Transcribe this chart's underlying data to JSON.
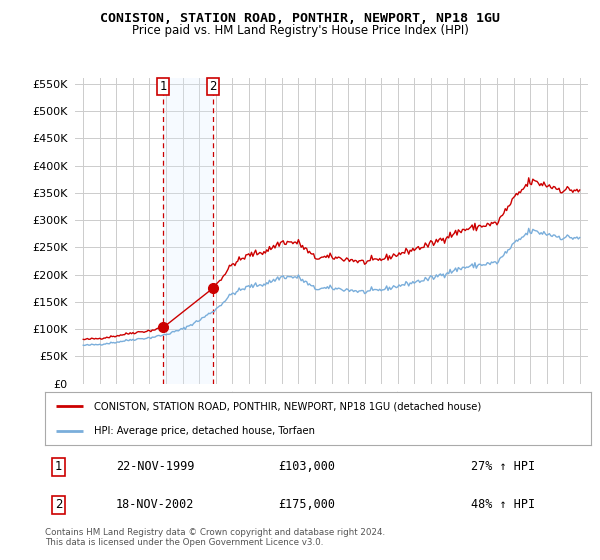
{
  "title": "CONISTON, STATION ROAD, PONTHIR, NEWPORT, NP18 1GU",
  "subtitle": "Price paid vs. HM Land Registry's House Price Index (HPI)",
  "legend_line1": "CONISTON, STATION ROAD, PONTHIR, NEWPORT, NP18 1GU (detached house)",
  "legend_line2": "HPI: Average price, detached house, Torfaen",
  "purchase1_date": "22-NOV-1999",
  "purchase1_price": "£103,000",
  "purchase1_hpi": "27% ↑ HPI",
  "purchase2_date": "18-NOV-2002",
  "purchase2_price": "£175,000",
  "purchase2_hpi": "48% ↑ HPI",
  "footer": "Contains HM Land Registry data © Crown copyright and database right 2024.\nThis data is licensed under the Open Government Licence v3.0.",
  "hpi_color": "#7aaedb",
  "price_paid_color": "#cc0000",
  "purchase1_x": 1999.88,
  "purchase1_y": 103000,
  "purchase2_x": 2002.88,
  "purchase2_y": 175000,
  "ylim_min": 0,
  "ylim_max": 560000,
  "yticks": [
    0,
    50000,
    100000,
    150000,
    200000,
    250000,
    300000,
    350000,
    400000,
    450000,
    500000,
    550000
  ],
  "xlim_min": 1994.5,
  "xlim_max": 2025.5,
  "box_fill_color": "#ddeeff",
  "box_edge_color": "#cc0000",
  "background_color": "#ffffff",
  "grid_color": "#cccccc"
}
